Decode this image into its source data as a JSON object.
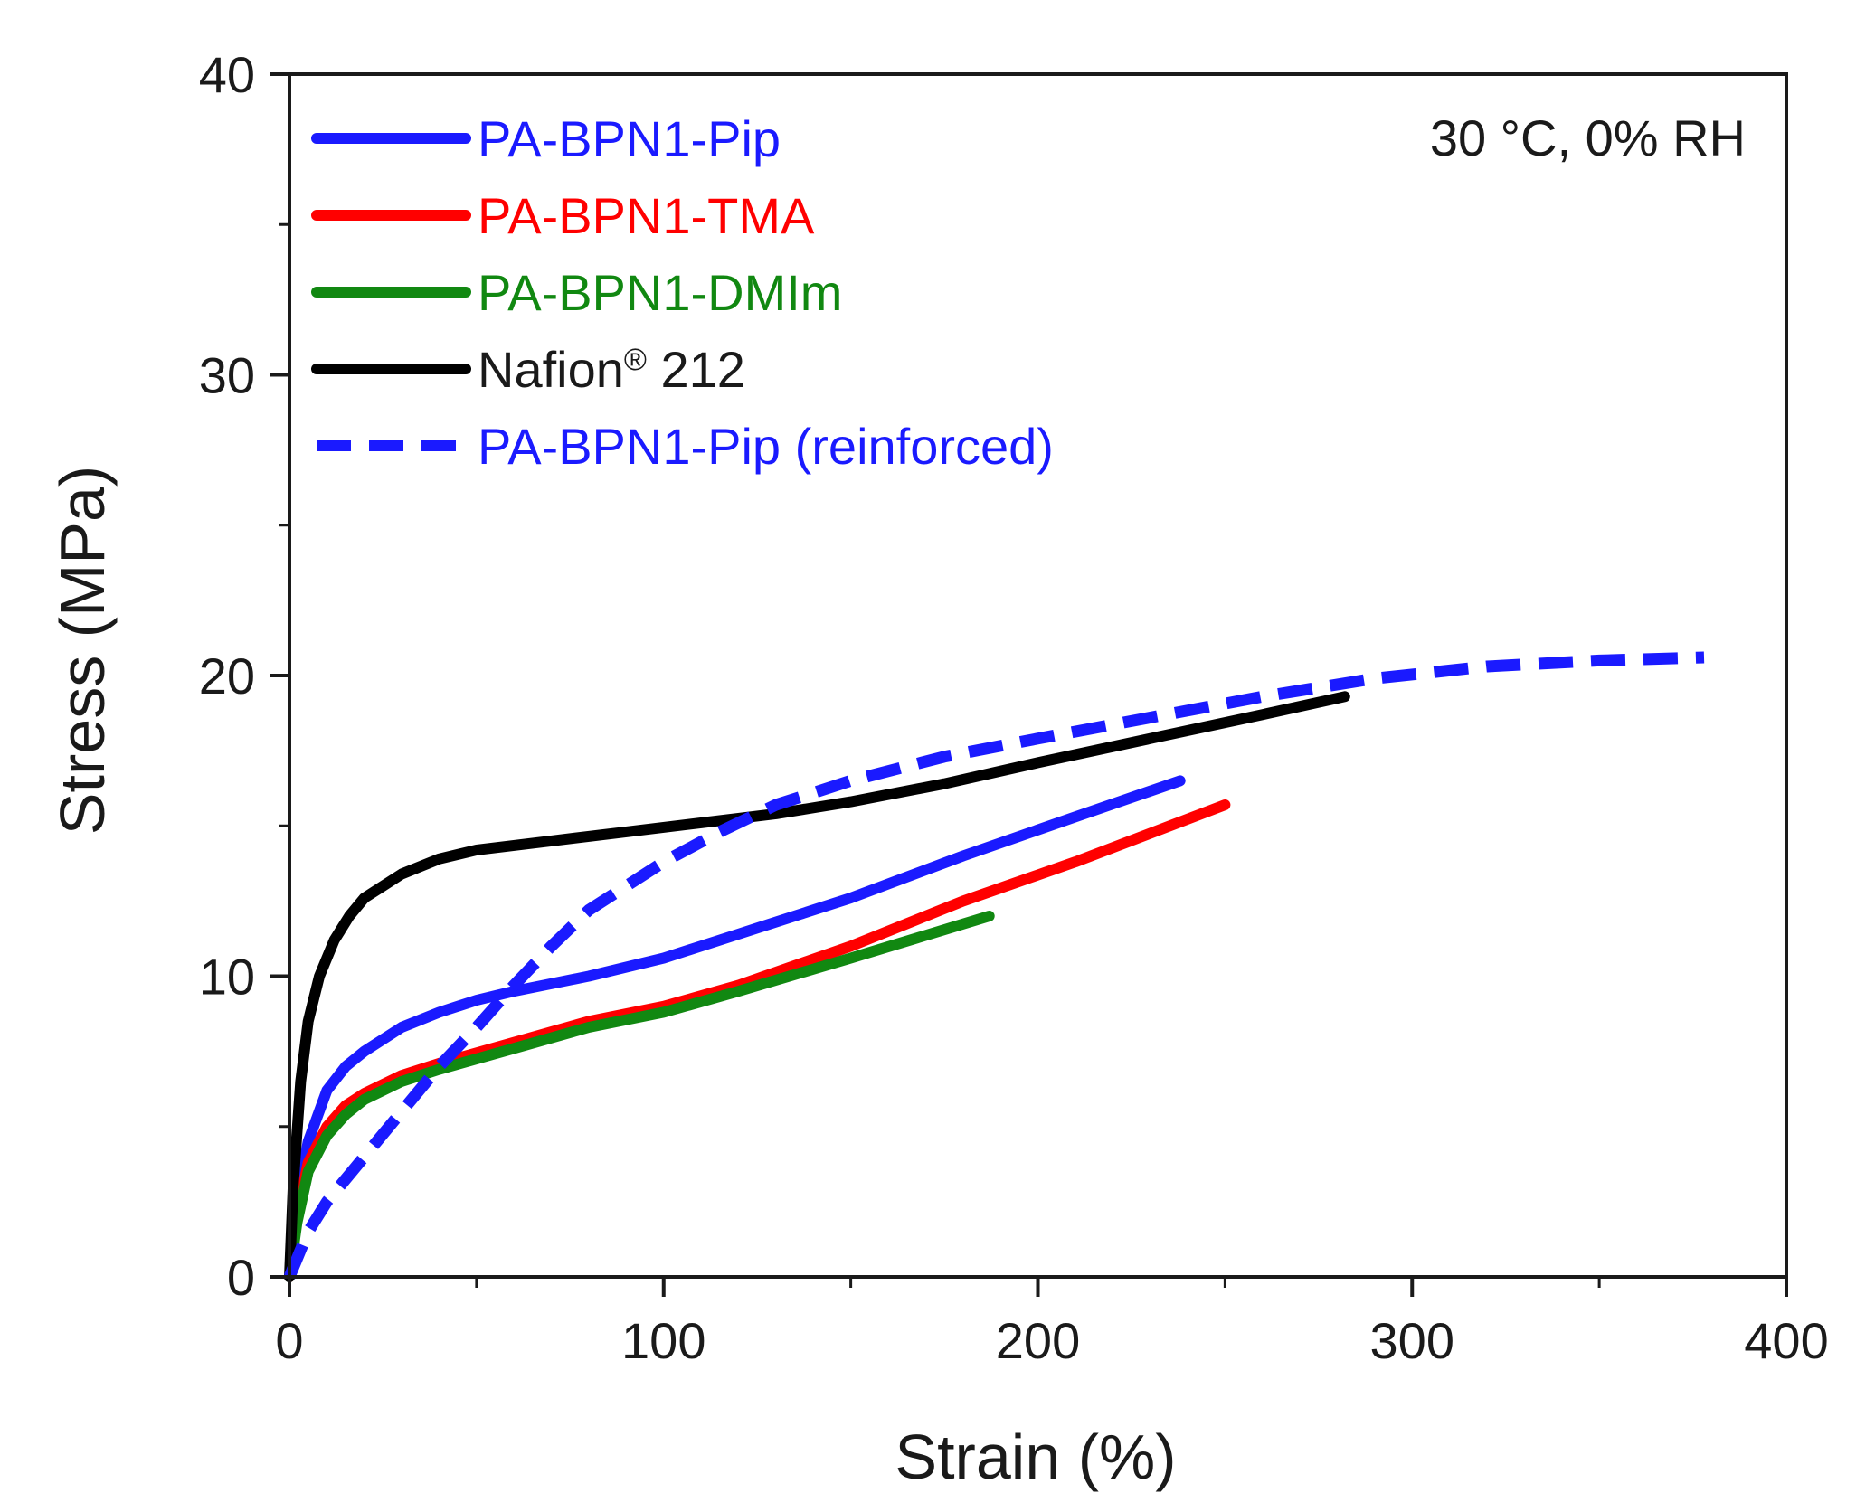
{
  "chart_data": {
    "type": "line",
    "title": "",
    "xlabel": "Strain (%)",
    "ylabel": "Stress (MPa)",
    "xlim": [
      0,
      400
    ],
    "ylim": [
      0,
      40
    ],
    "xticks": [
      0,
      100,
      200,
      300,
      400
    ],
    "xtick_labels": [
      "0",
      "100",
      "200",
      "300",
      "400"
    ],
    "yticks": [
      0,
      10,
      20,
      30,
      40
    ],
    "ytick_labels": [
      "0",
      "10",
      "20",
      "30",
      "40"
    ],
    "annotation": "30 °C, 0% RH",
    "legend_position": "top-left",
    "series": [
      {
        "name": "PA-BPN1-Pip",
        "color": "#1a1aff",
        "style": "solid",
        "x": [
          0,
          2,
          5,
          10,
          15,
          20,
          30,
          40,
          50,
          60,
          80,
          100,
          120,
          150,
          180,
          210,
          238
        ],
        "y": [
          0,
          2.5,
          4.5,
          6.2,
          7.0,
          7.5,
          8.3,
          8.8,
          9.2,
          9.5,
          10.0,
          10.6,
          11.4,
          12.6,
          14.0,
          15.3,
          16.5
        ]
      },
      {
        "name": "PA-BPN1-TMA",
        "color": "#ff0000",
        "style": "solid",
        "x": [
          0,
          2,
          5,
          10,
          15,
          20,
          30,
          40,
          60,
          80,
          100,
          120,
          150,
          180,
          210,
          250
        ],
        "y": [
          0,
          2.0,
          3.8,
          5.0,
          5.7,
          6.1,
          6.7,
          7.1,
          7.8,
          8.5,
          9.0,
          9.7,
          11.0,
          12.5,
          13.8,
          15.7
        ]
      },
      {
        "name": "PA-BPN1-DMIm",
        "color": "#118811",
        "style": "solid",
        "x": [
          0,
          2,
          5,
          10,
          15,
          20,
          30,
          40,
          60,
          80,
          100,
          120,
          150,
          187
        ],
        "y": [
          0,
          1.8,
          3.5,
          4.7,
          5.4,
          5.9,
          6.5,
          6.9,
          7.6,
          8.3,
          8.8,
          9.5,
          10.6,
          12.0
        ]
      },
      {
        "name": "Nafion® 212",
        "color": "#000000",
        "style": "solid",
        "x": [
          0,
          1,
          3,
          5,
          8,
          12,
          16,
          20,
          25,
          30,
          40,
          50,
          70,
          90,
          110,
          130,
          150,
          175,
          200,
          230,
          260,
          282
        ],
        "y": [
          0,
          3.0,
          6.5,
          8.5,
          10.0,
          11.2,
          12.0,
          12.6,
          13.0,
          13.4,
          13.9,
          14.2,
          14.5,
          14.8,
          15.1,
          15.4,
          15.8,
          16.4,
          17.1,
          17.9,
          18.7,
          19.3
        ]
      },
      {
        "name": "PA-BPN1-Pip (reinforced)",
        "color": "#1a1aff",
        "style": "dashed",
        "x": [
          0,
          5,
          10,
          20,
          30,
          40,
          50,
          60,
          70,
          80,
          90,
          100,
          115,
          130,
          150,
          175,
          200,
          230,
          260,
          290,
          320,
          350,
          378
        ],
        "y": [
          0,
          1.5,
          2.5,
          4.0,
          5.5,
          7.0,
          8.3,
          9.7,
          11.0,
          12.2,
          13.0,
          13.8,
          14.8,
          15.7,
          16.5,
          17.3,
          17.9,
          18.6,
          19.3,
          19.9,
          20.3,
          20.5,
          20.6
        ]
      }
    ]
  }
}
